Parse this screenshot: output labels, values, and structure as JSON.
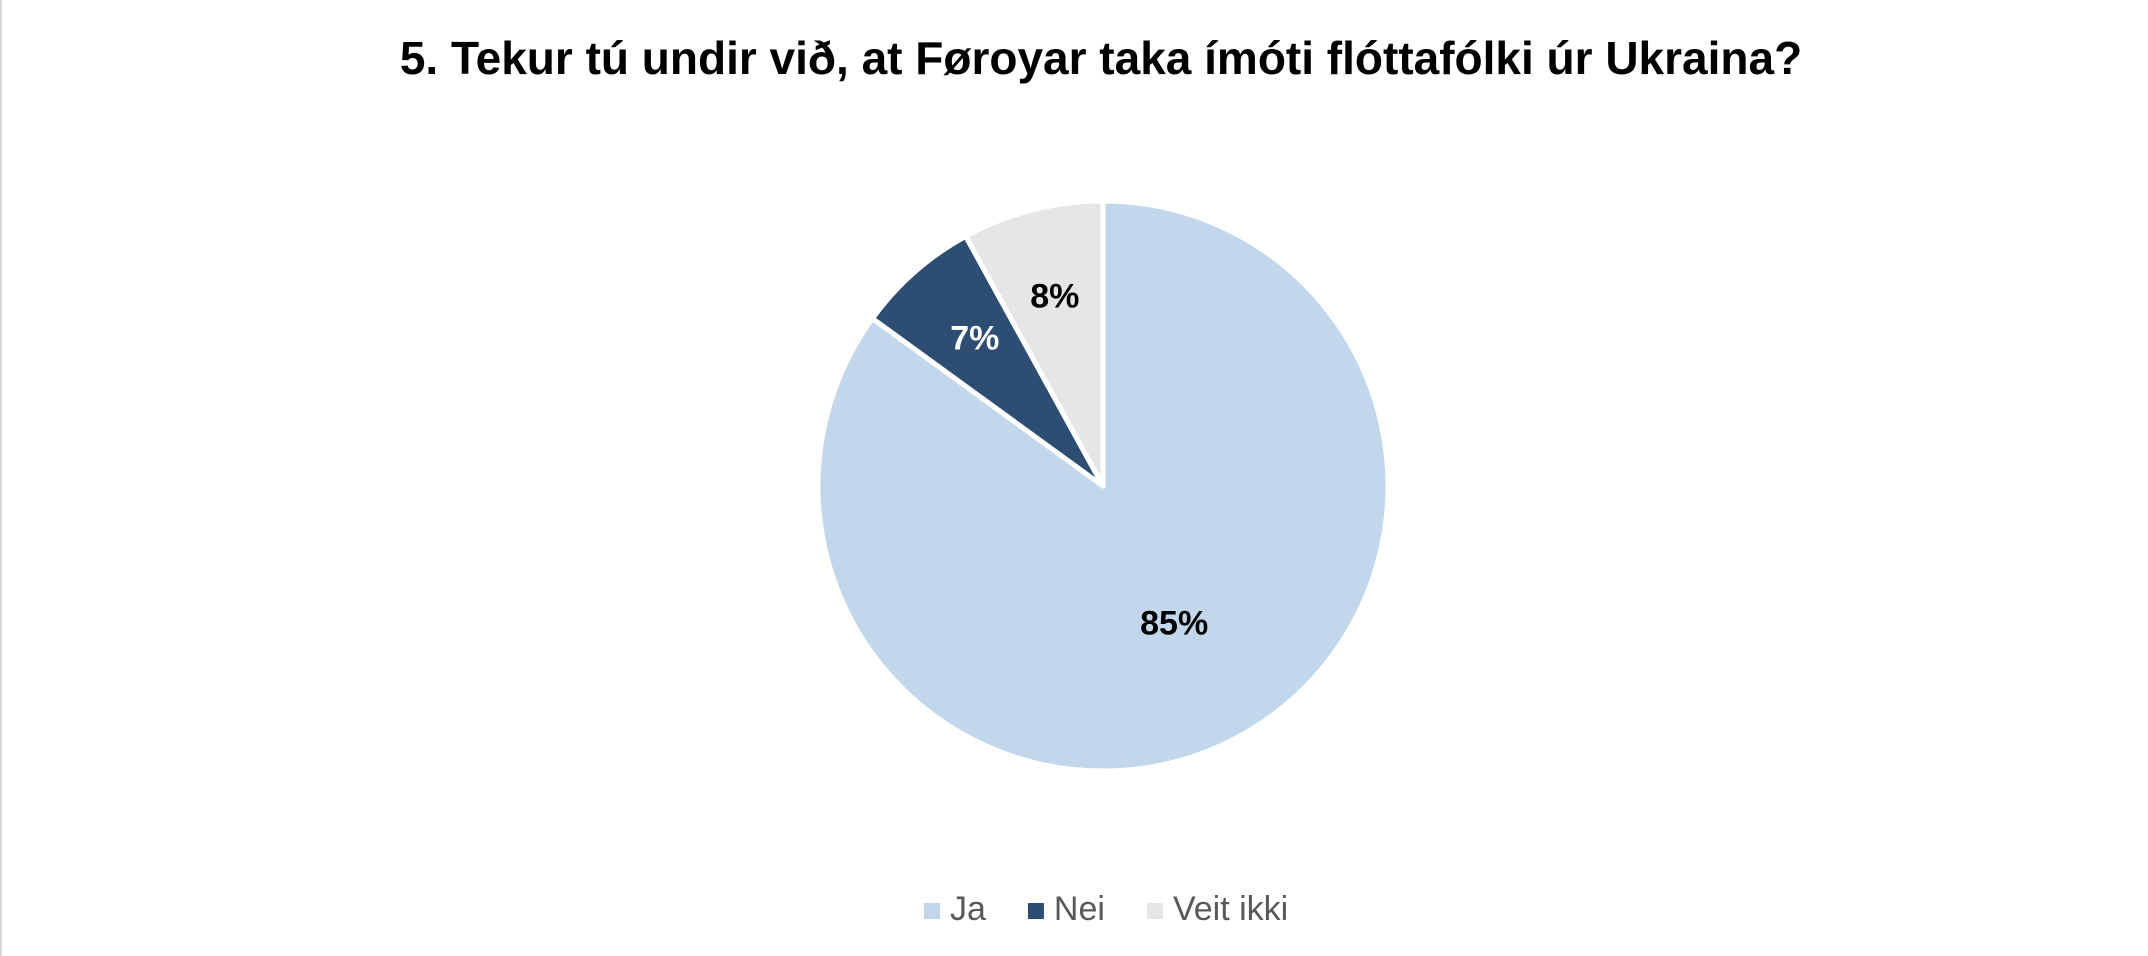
{
  "chart_data": {
    "type": "pie",
    "title": "5. Tekur tú undir við, at Føroyar taka ímóti flóttafólki úr Ukraina?",
    "categories": [
      "Ja",
      "Nei",
      "Veit ikki"
    ],
    "values": [
      85,
      7,
      8
    ],
    "value_labels": [
      "85%",
      "7%",
      "8%"
    ],
    "colors": [
      "#c3d7ec",
      "#2e4d73",
      "#e7e6e6"
    ],
    "legend": "bottom"
  }
}
